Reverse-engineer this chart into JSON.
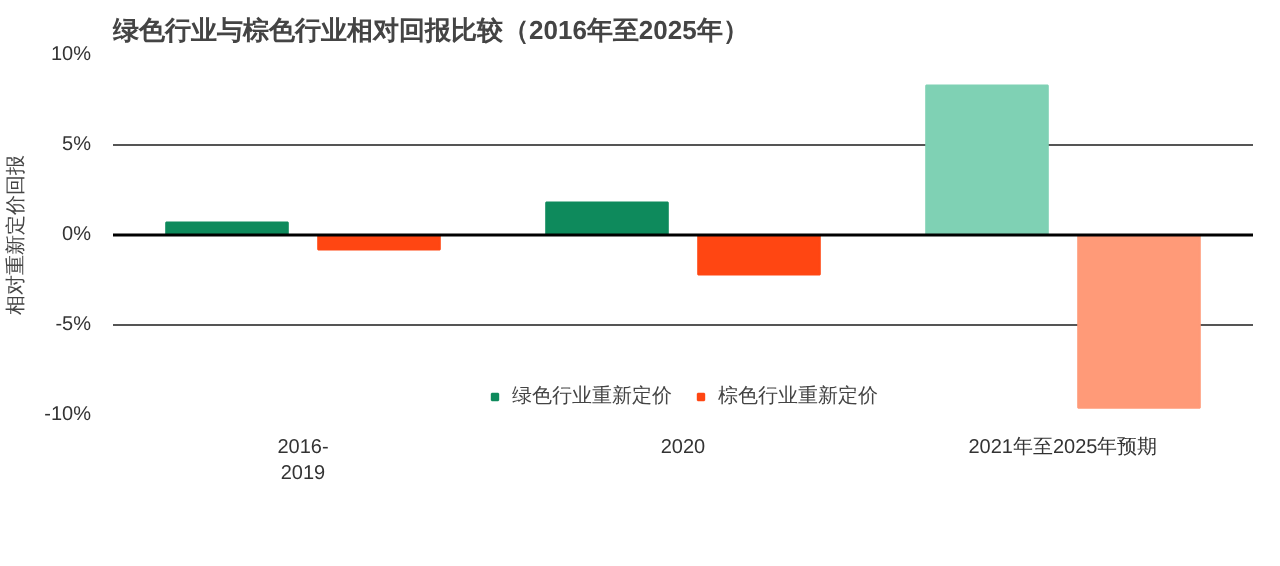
{
  "chart_data": {
    "type": "bar",
    "title": "绿色行业与棕色行业相对回报比较（2016年至2025年）",
    "ylabel": "相对重新定价回报",
    "categories": [
      "2016-\n2019",
      "2020",
      "2021年至2025年预期"
    ],
    "series": [
      {
        "name": "绿色行业重新定价",
        "color": "#0e8a5c",
        "colors": [
          "#0e8a5c",
          "#0e8a5c",
          "#7fd1b4"
        ],
        "values": [
          0.7,
          1.8,
          8.3
        ]
      },
      {
        "name": "棕色行业重新定价",
        "color": "#ff4612",
        "colors": [
          "#ff4612",
          "#ff4612",
          "#ff9a78"
        ],
        "values": [
          -0.8,
          -2.2,
          -9.6
        ]
      }
    ],
    "ylim": [
      -10,
      10
    ],
    "yticks": [
      {
        "value": -10,
        "label": "-10%"
      },
      {
        "value": -5,
        "label": "-5%"
      },
      {
        "value": 0,
        "label": "0%"
      },
      {
        "value": 5,
        "label": "5%"
      },
      {
        "value": 10,
        "label": "10%"
      }
    ],
    "grid": "y",
    "legend": "bottom"
  }
}
